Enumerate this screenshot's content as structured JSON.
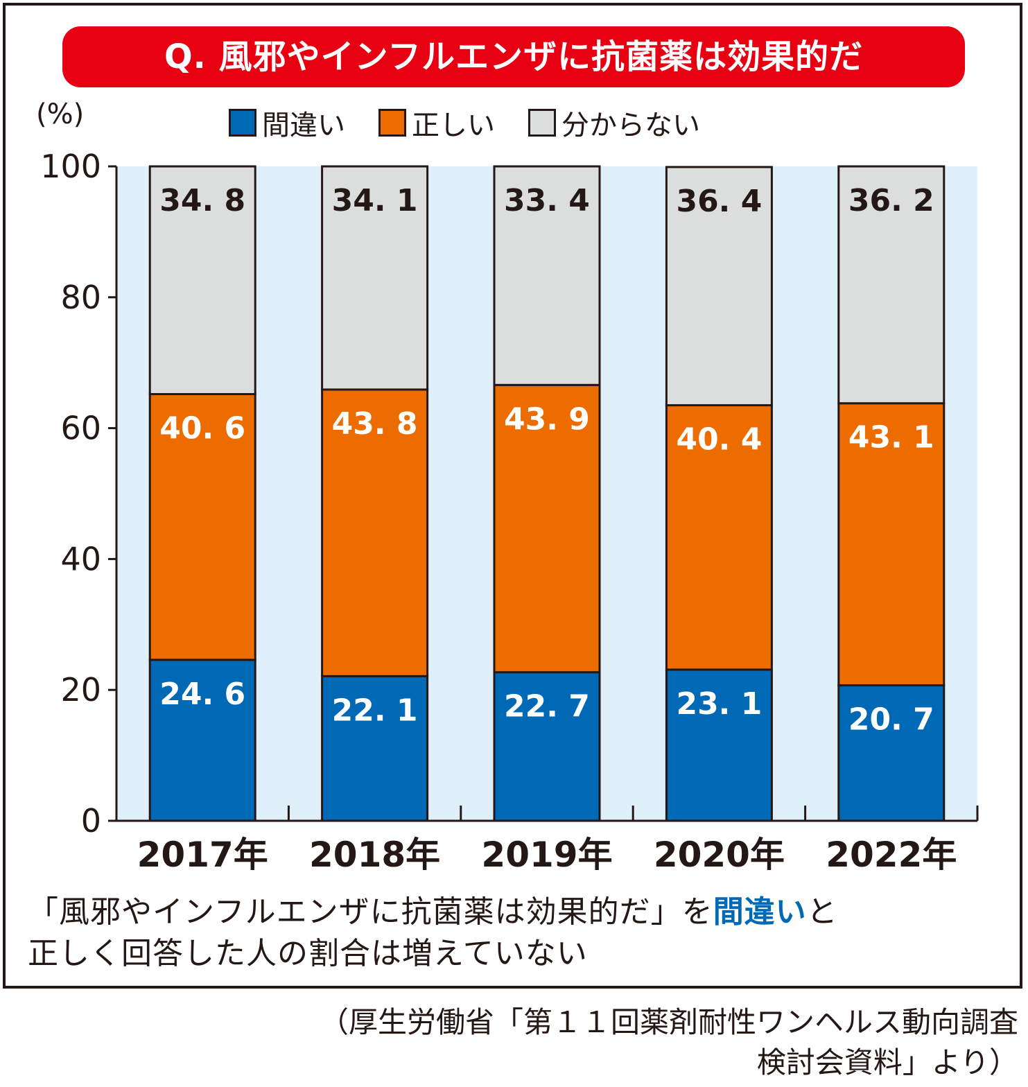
{
  "title": "Q. 風邪やインフルエンザに抗菌薬は効果的だ",
  "unit_label": "(%)",
  "legend": [
    {
      "label": "間違い",
      "color": "#0069b6"
    },
    {
      "label": "正しい",
      "color": "#ec6c00"
    },
    {
      "label": "分からない",
      "color": "#dcdddd"
    }
  ],
  "caption": {
    "part1": "「風邪やインフルエンザに抗菌薬は効果的だ」を",
    "highlight": "間違い",
    "part2": "と",
    "line2": "正しく回答した人の割合は増えていない"
  },
  "source": {
    "line1": "（厚生労働省「第１１回薬剤耐性ワンヘルス動向調査",
    "line2": "検討会資料」より）"
  },
  "chart_data": {
    "type": "bar",
    "stacked": true,
    "title": "Q. 風邪やインフルエンザに抗菌薬は効果的だ",
    "ylabel": "(%)",
    "xlabel": "",
    "ylim": [
      0,
      100
    ],
    "yticks": [
      "0",
      "20",
      "40",
      "60",
      "80",
      "100"
    ],
    "categories": [
      "2017年",
      "2018年",
      "2019年",
      "2020年",
      "2022年"
    ],
    "series": [
      {
        "name": "間違い",
        "color": "#0069b6",
        "label_color": "#ffffff",
        "values": [
          24.6,
          22.1,
          22.7,
          23.1,
          20.7
        ],
        "labels": [
          "24. 6",
          "22. 1",
          "22. 7",
          "23. 1",
          "20. 7"
        ]
      },
      {
        "name": "正しい",
        "color": "#ec6c00",
        "label_color": "#ffffff",
        "values": [
          40.6,
          43.8,
          43.9,
          40.4,
          43.1
        ],
        "labels": [
          "40. 6",
          "43. 8",
          "43. 9",
          "40. 4",
          "43. 1"
        ]
      },
      {
        "name": "分からない",
        "color": "#dcdddd",
        "label_color": "#231815",
        "values": [
          34.8,
          34.1,
          33.4,
          36.4,
          36.2
        ],
        "labels": [
          "34. 8",
          "34. 1",
          "33. 4",
          "36. 4",
          "36. 2"
        ]
      }
    ],
    "plot_background": "#dff0fa",
    "grid": false,
    "legend_position": "top"
  }
}
